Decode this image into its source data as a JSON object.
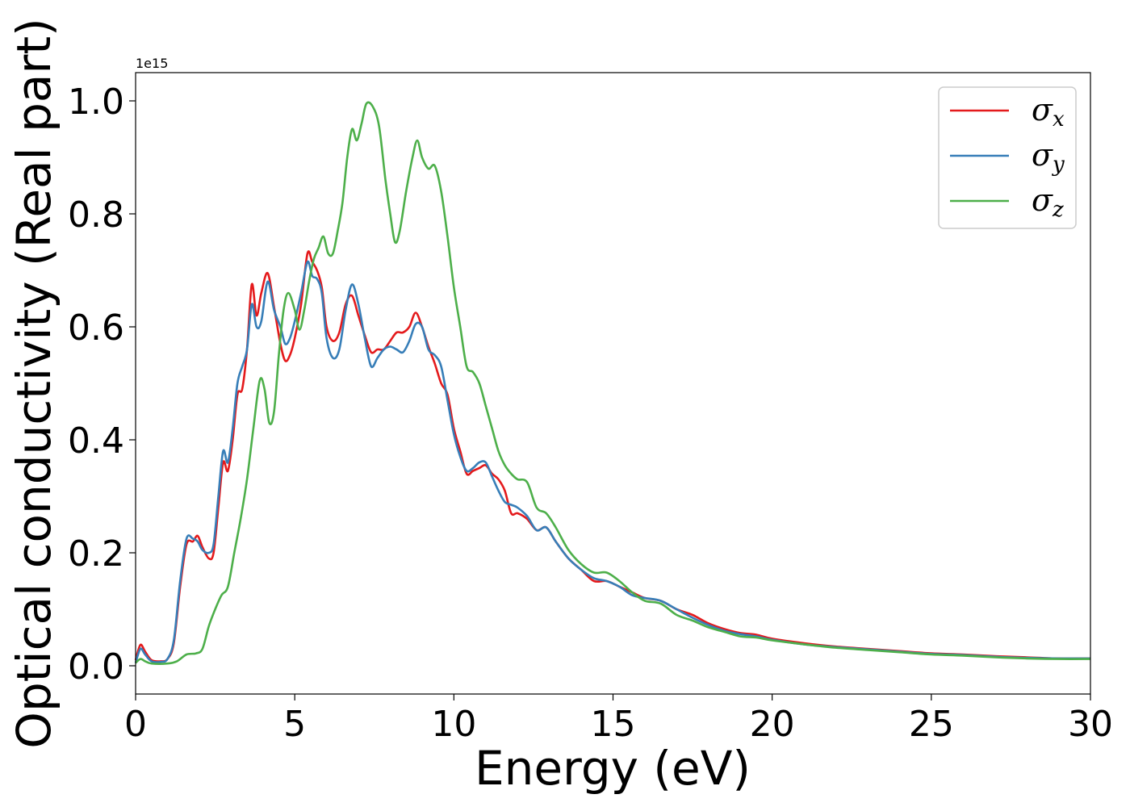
{
  "chart_data": {
    "type": "line",
    "title": "",
    "xlabel": "Energy (eV)",
    "ylabel": "Optical conductivity (Real part)",
    "y_offset_label": "1e15",
    "xlim": [
      0,
      30
    ],
    "ylim": [
      -0.05,
      1.05
    ],
    "x_ticks": [
      0,
      5,
      10,
      15,
      20,
      25,
      30
    ],
    "x_tick_labels": [
      "0",
      "5",
      "10",
      "15",
      "20",
      "25",
      "30"
    ],
    "y_ticks": [
      0.0,
      0.2,
      0.4,
      0.6,
      0.8,
      1.0
    ],
    "y_tick_labels": [
      "0.0",
      "0.2",
      "0.4",
      "0.6",
      "0.8",
      "1.0"
    ],
    "grid": false,
    "legend_position": "top-right",
    "series": [
      {
        "symbol": "σ",
        "subscript": "x",
        "color": "#e41a1c",
        "points": [
          [
            0,
            0.01
          ],
          [
            0.15,
            0.037
          ],
          [
            0.3,
            0.025
          ],
          [
            0.5,
            0.01
          ],
          [
            0.8,
            0.008
          ],
          [
            1.0,
            0.012
          ],
          [
            1.2,
            0.04
          ],
          [
            1.4,
            0.14
          ],
          [
            1.6,
            0.215
          ],
          [
            1.8,
            0.22
          ],
          [
            1.95,
            0.23
          ],
          [
            2.1,
            0.21
          ],
          [
            2.3,
            0.19
          ],
          [
            2.45,
            0.2
          ],
          [
            2.6,
            0.28
          ],
          [
            2.75,
            0.36
          ],
          [
            2.9,
            0.345
          ],
          [
            3.05,
            0.4
          ],
          [
            3.2,
            0.48
          ],
          [
            3.35,
            0.49
          ],
          [
            3.5,
            0.56
          ],
          [
            3.65,
            0.675
          ],
          [
            3.8,
            0.62
          ],
          [
            3.95,
            0.66
          ],
          [
            4.15,
            0.695
          ],
          [
            4.35,
            0.635
          ],
          [
            4.55,
            0.57
          ],
          [
            4.7,
            0.54
          ],
          [
            4.85,
            0.55
          ],
          [
            5.0,
            0.58
          ],
          [
            5.2,
            0.64
          ],
          [
            5.4,
            0.73
          ],
          [
            5.55,
            0.715
          ],
          [
            5.7,
            0.7
          ],
          [
            5.85,
            0.67
          ],
          [
            6.0,
            0.6
          ],
          [
            6.2,
            0.575
          ],
          [
            6.4,
            0.59
          ],
          [
            6.6,
            0.64
          ],
          [
            6.8,
            0.655
          ],
          [
            7.0,
            0.62
          ],
          [
            7.2,
            0.585
          ],
          [
            7.4,
            0.555
          ],
          [
            7.6,
            0.56
          ],
          [
            7.8,
            0.56
          ],
          [
            8.0,
            0.575
          ],
          [
            8.2,
            0.59
          ],
          [
            8.4,
            0.59
          ],
          [
            8.6,
            0.6
          ],
          [
            8.8,
            0.625
          ],
          [
            9.0,
            0.6
          ],
          [
            9.2,
            0.565
          ],
          [
            9.4,
            0.535
          ],
          [
            9.6,
            0.5
          ],
          [
            9.8,
            0.48
          ],
          [
            10.0,
            0.42
          ],
          [
            10.2,
            0.38
          ],
          [
            10.4,
            0.34
          ],
          [
            10.6,
            0.345
          ],
          [
            10.8,
            0.35
          ],
          [
            11.0,
            0.355
          ],
          [
            11.2,
            0.34
          ],
          [
            11.4,
            0.33
          ],
          [
            11.6,
            0.31
          ],
          [
            11.8,
            0.27
          ],
          [
            12.0,
            0.27
          ],
          [
            12.3,
            0.26
          ],
          [
            12.6,
            0.24
          ],
          [
            12.9,
            0.245
          ],
          [
            13.2,
            0.22
          ],
          [
            13.6,
            0.19
          ],
          [
            14.0,
            0.17
          ],
          [
            14.4,
            0.15
          ],
          [
            14.8,
            0.15
          ],
          [
            15.2,
            0.14
          ],
          [
            15.6,
            0.13
          ],
          [
            16.0,
            0.12
          ],
          [
            16.5,
            0.115
          ],
          [
            17.0,
            0.1
          ],
          [
            17.5,
            0.09
          ],
          [
            18.0,
            0.075
          ],
          [
            18.5,
            0.065
          ],
          [
            19.0,
            0.058
          ],
          [
            19.5,
            0.055
          ],
          [
            20.0,
            0.048
          ],
          [
            21.0,
            0.04
          ],
          [
            22.0,
            0.034
          ],
          [
            23.0,
            0.03
          ],
          [
            24.0,
            0.026
          ],
          [
            25.0,
            0.022
          ],
          [
            26.0,
            0.02
          ],
          [
            27.0,
            0.017
          ],
          [
            28.0,
            0.015
          ],
          [
            29.0,
            0.013
          ],
          [
            30.0,
            0.013
          ]
        ]
      },
      {
        "symbol": "σ",
        "subscript": "y",
        "color": "#377eb8",
        "points": [
          [
            0,
            0.005
          ],
          [
            0.15,
            0.03
          ],
          [
            0.3,
            0.02
          ],
          [
            0.5,
            0.008
          ],
          [
            0.8,
            0.007
          ],
          [
            1.0,
            0.012
          ],
          [
            1.2,
            0.045
          ],
          [
            1.4,
            0.15
          ],
          [
            1.6,
            0.225
          ],
          [
            1.8,
            0.225
          ],
          [
            1.95,
            0.22
          ],
          [
            2.1,
            0.205
          ],
          [
            2.3,
            0.2
          ],
          [
            2.45,
            0.215
          ],
          [
            2.6,
            0.3
          ],
          [
            2.75,
            0.38
          ],
          [
            2.9,
            0.36
          ],
          [
            3.05,
            0.42
          ],
          [
            3.2,
            0.5
          ],
          [
            3.35,
            0.53
          ],
          [
            3.5,
            0.56
          ],
          [
            3.65,
            0.64
          ],
          [
            3.8,
            0.6
          ],
          [
            3.95,
            0.61
          ],
          [
            4.15,
            0.68
          ],
          [
            4.35,
            0.63
          ],
          [
            4.55,
            0.6
          ],
          [
            4.7,
            0.57
          ],
          [
            4.85,
            0.58
          ],
          [
            5.0,
            0.61
          ],
          [
            5.2,
            0.66
          ],
          [
            5.4,
            0.715
          ],
          [
            5.55,
            0.69
          ],
          [
            5.7,
            0.685
          ],
          [
            5.85,
            0.66
          ],
          [
            6.0,
            0.58
          ],
          [
            6.2,
            0.545
          ],
          [
            6.4,
            0.56
          ],
          [
            6.6,
            0.63
          ],
          [
            6.8,
            0.675
          ],
          [
            7.0,
            0.64
          ],
          [
            7.2,
            0.58
          ],
          [
            7.4,
            0.53
          ],
          [
            7.6,
            0.545
          ],
          [
            7.8,
            0.56
          ],
          [
            8.0,
            0.565
          ],
          [
            8.2,
            0.56
          ],
          [
            8.4,
            0.555
          ],
          [
            8.6,
            0.575
          ],
          [
            8.8,
            0.605
          ],
          [
            9.0,
            0.6
          ],
          [
            9.2,
            0.56
          ],
          [
            9.4,
            0.55
          ],
          [
            9.6,
            0.53
          ],
          [
            9.8,
            0.47
          ],
          [
            10.0,
            0.41
          ],
          [
            10.2,
            0.37
          ],
          [
            10.4,
            0.345
          ],
          [
            10.6,
            0.35
          ],
          [
            10.8,
            0.36
          ],
          [
            11.0,
            0.36
          ],
          [
            11.2,
            0.335
          ],
          [
            11.4,
            0.31
          ],
          [
            11.6,
            0.29
          ],
          [
            11.8,
            0.285
          ],
          [
            12.0,
            0.28
          ],
          [
            12.3,
            0.265
          ],
          [
            12.6,
            0.24
          ],
          [
            12.9,
            0.245
          ],
          [
            13.2,
            0.22
          ],
          [
            13.6,
            0.19
          ],
          [
            14.0,
            0.17
          ],
          [
            14.4,
            0.155
          ],
          [
            14.8,
            0.15
          ],
          [
            15.2,
            0.14
          ],
          [
            15.6,
            0.125
          ],
          [
            16.0,
            0.12
          ],
          [
            16.5,
            0.115
          ],
          [
            17.0,
            0.1
          ],
          [
            17.5,
            0.085
          ],
          [
            18.0,
            0.072
          ],
          [
            18.5,
            0.062
          ],
          [
            19.0,
            0.056
          ],
          [
            19.5,
            0.052
          ],
          [
            20.0,
            0.046
          ],
          [
            21.0,
            0.038
          ],
          [
            22.0,
            0.033
          ],
          [
            23.0,
            0.029
          ],
          [
            24.0,
            0.025
          ],
          [
            25.0,
            0.021
          ],
          [
            26.0,
            0.019
          ],
          [
            27.0,
            0.016
          ],
          [
            28.0,
            0.014
          ],
          [
            29.0,
            0.013
          ],
          [
            30.0,
            0.013
          ]
        ]
      },
      {
        "symbol": "σ",
        "subscript": "z",
        "color": "#4daf4a",
        "points": [
          [
            0,
            0.005
          ],
          [
            0.15,
            0.012
          ],
          [
            0.3,
            0.008
          ],
          [
            0.5,
            0.004
          ],
          [
            1.0,
            0.004
          ],
          [
            1.3,
            0.008
          ],
          [
            1.6,
            0.02
          ],
          [
            1.9,
            0.022
          ],
          [
            2.1,
            0.03
          ],
          [
            2.3,
            0.07
          ],
          [
            2.5,
            0.1
          ],
          [
            2.7,
            0.125
          ],
          [
            2.9,
            0.14
          ],
          [
            3.1,
            0.2
          ],
          [
            3.3,
            0.26
          ],
          [
            3.5,
            0.33
          ],
          [
            3.7,
            0.42
          ],
          [
            3.9,
            0.505
          ],
          [
            4.05,
            0.49
          ],
          [
            4.2,
            0.43
          ],
          [
            4.35,
            0.45
          ],
          [
            4.5,
            0.55
          ],
          [
            4.65,
            0.63
          ],
          [
            4.8,
            0.66
          ],
          [
            5.0,
            0.63
          ],
          [
            5.15,
            0.595
          ],
          [
            5.3,
            0.63
          ],
          [
            5.45,
            0.68
          ],
          [
            5.6,
            0.72
          ],
          [
            5.75,
            0.74
          ],
          [
            5.9,
            0.76
          ],
          [
            6.05,
            0.73
          ],
          [
            6.2,
            0.73
          ],
          [
            6.35,
            0.77
          ],
          [
            6.5,
            0.82
          ],
          [
            6.65,
            0.9
          ],
          [
            6.8,
            0.95
          ],
          [
            6.95,
            0.93
          ],
          [
            7.1,
            0.96
          ],
          [
            7.25,
            0.995
          ],
          [
            7.45,
            0.99
          ],
          [
            7.65,
            0.955
          ],
          [
            7.85,
            0.86
          ],
          [
            8.0,
            0.8
          ],
          [
            8.15,
            0.75
          ],
          [
            8.3,
            0.77
          ],
          [
            8.5,
            0.84
          ],
          [
            8.7,
            0.9
          ],
          [
            8.85,
            0.93
          ],
          [
            9.0,
            0.9
          ],
          [
            9.2,
            0.88
          ],
          [
            9.4,
            0.885
          ],
          [
            9.6,
            0.84
          ],
          [
            9.8,
            0.76
          ],
          [
            10.0,
            0.67
          ],
          [
            10.2,
            0.6
          ],
          [
            10.4,
            0.53
          ],
          [
            10.6,
            0.52
          ],
          [
            10.8,
            0.5
          ],
          [
            11.0,
            0.46
          ],
          [
            11.2,
            0.42
          ],
          [
            11.4,
            0.38
          ],
          [
            11.6,
            0.355
          ],
          [
            11.8,
            0.34
          ],
          [
            12.0,
            0.33
          ],
          [
            12.3,
            0.325
          ],
          [
            12.6,
            0.28
          ],
          [
            12.9,
            0.27
          ],
          [
            13.2,
            0.245
          ],
          [
            13.6,
            0.205
          ],
          [
            14.0,
            0.18
          ],
          [
            14.4,
            0.165
          ],
          [
            14.8,
            0.165
          ],
          [
            15.2,
            0.15
          ],
          [
            15.6,
            0.13
          ],
          [
            16.0,
            0.115
          ],
          [
            16.5,
            0.11
          ],
          [
            17.0,
            0.09
          ],
          [
            17.5,
            0.08
          ],
          [
            18.0,
            0.068
          ],
          [
            18.5,
            0.06
          ],
          [
            19.0,
            0.052
          ],
          [
            19.5,
            0.05
          ],
          [
            20.0,
            0.045
          ],
          [
            21.0,
            0.038
          ],
          [
            22.0,
            0.032
          ],
          [
            23.0,
            0.028
          ],
          [
            24.0,
            0.024
          ],
          [
            25.0,
            0.02
          ],
          [
            26.0,
            0.018
          ],
          [
            27.0,
            0.015
          ],
          [
            28.0,
            0.013
          ],
          [
            29.0,
            0.012
          ],
          [
            30.0,
            0.012
          ]
        ]
      }
    ]
  }
}
